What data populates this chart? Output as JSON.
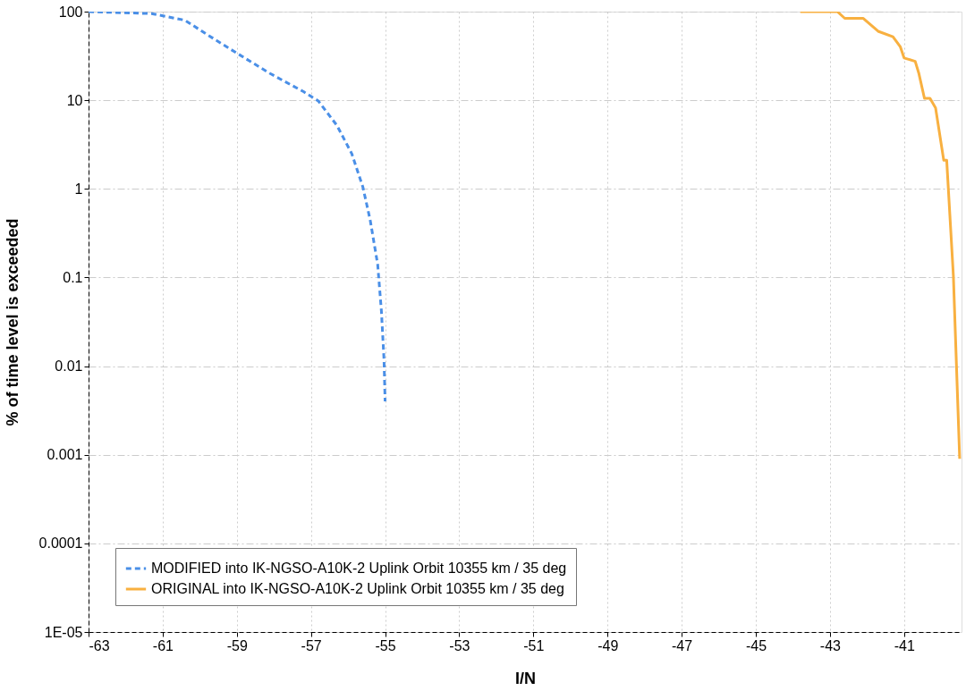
{
  "chart_data": {
    "type": "line",
    "xlabel": "I/N",
    "ylabel": "% of time level is exceeded",
    "log": "y",
    "grid": true,
    "legend": "bottom left",
    "xlim": [
      -63,
      -39.45
    ],
    "xticks": [
      -63,
      -61,
      -59,
      -57,
      -55,
      -53,
      -51,
      -49,
      -47,
      -45,
      -43,
      -41
    ],
    "ylim": [
      1e-05,
      100
    ],
    "yticks": [
      100,
      10,
      1,
      0.1,
      0.01,
      0.001,
      0.0001,
      {
        "value": 1e-05,
        "label": "1E-05"
      }
    ],
    "series": [
      {
        "name": "MODIFIED into IK-NGSO-A10K-2 Uplink Orbit 10355 km / 35 deg",
        "color": "#4a8fe7",
        "line_style": "dashed",
        "x": [
          -63,
          -61.3,
          -60.4,
          -59.8,
          -59,
          -58.1,
          -57.2,
          -56.8,
          -56.3,
          -55.9,
          -55.6,
          -55.4,
          -55.2,
          -55.1,
          -55.03,
          -55
        ],
        "values": [
          100,
          95,
          80,
          55,
          34,
          20,
          12.5,
          9.8,
          5.2,
          2.5,
          1.05,
          0.44,
          0.14,
          0.042,
          0.012,
          0.004
        ]
      },
      {
        "name": "ORIGINAL into IK-NGSO-A10K-2 Uplink Orbit 10355 km / 35 deg",
        "color": "#f8b040",
        "line_style": "solid",
        "x": [
          -43.8,
          -42.8,
          -42.6,
          -42.1,
          -41.7,
          -41.3,
          -41.1,
          -41,
          -40.7,
          -40.6,
          -40.45,
          -40.3,
          -40.15,
          -39.93,
          -39.85,
          -39.67,
          -39.5
        ],
        "values": [
          100,
          100,
          84,
          84,
          60,
          52,
          40,
          30,
          27.5,
          20,
          10.5,
          10.5,
          8.2,
          2.1,
          2.1,
          0.105,
          0.0009
        ]
      }
    ]
  }
}
